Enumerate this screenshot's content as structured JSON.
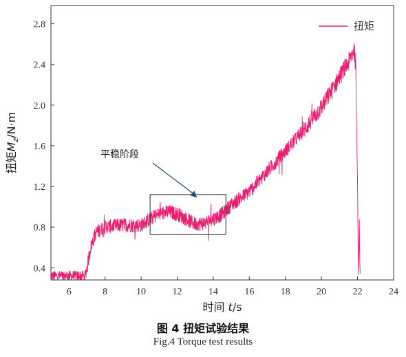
{
  "chart_data": {
    "type": "line",
    "xlabel": "时间 t/s",
    "ylabel": "扭矩M_z/N·m",
    "xlim": [
      5,
      24
    ],
    "ylim": [
      0.28,
      2.98
    ],
    "xticks": [
      6,
      8,
      10,
      12,
      14,
      16,
      18,
      20,
      22,
      24
    ],
    "yticks": [
      0.4,
      0.8,
      1.2,
      1.6,
      2.0,
      2.4,
      2.8
    ],
    "grid": false,
    "legend_position": "top-right",
    "series": [
      {
        "name": "扭矩",
        "color": "#ec1c6e",
        "note_noise": "noisy signal, band half-width ~0.06 N·m",
        "x": [
          5.0,
          6.0,
          6.9,
          7.0,
          7.2,
          7.5,
          8.0,
          9.0,
          10.0,
          10.5,
          11.0,
          11.5,
          12.0,
          12.5,
          13.0,
          13.5,
          14.0,
          14.5,
          15.0,
          16.0,
          17.0,
          18.0,
          19.0,
          20.0,
          20.5,
          21.0,
          21.5,
          21.8,
          21.9,
          22.0,
          22.05,
          22.1,
          22.12,
          22.15
        ],
        "values": [
          0.32,
          0.32,
          0.32,
          0.4,
          0.6,
          0.75,
          0.8,
          0.82,
          0.82,
          0.88,
          0.93,
          0.95,
          0.93,
          0.88,
          0.83,
          0.84,
          0.88,
          0.93,
          1.02,
          1.15,
          1.35,
          1.55,
          1.75,
          1.98,
          2.12,
          2.28,
          2.42,
          2.55,
          2.4,
          1.2,
          0.3,
          0.85,
          0.55,
          0.3
        ]
      }
    ],
    "annotations": [
      {
        "text": "平稳阶段",
        "box_x": [
          10.5,
          14.7
        ],
        "box_y": [
          0.73,
          1.12
        ],
        "arrow_to": [
          13.1,
          1.09
        ]
      }
    ]
  },
  "caption": {
    "cn": "图 4    扭矩试验结果",
    "en": "Fig.4    Torque test results"
  }
}
